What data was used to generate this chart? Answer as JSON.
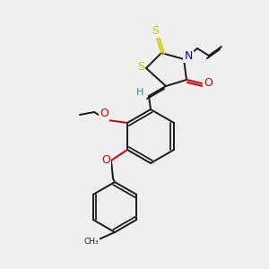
{
  "bg_color": "#efefef",
  "bond_color": "#1a1a1a",
  "bond_width": 1.4,
  "S_color": "#cccc00",
  "N_color": "#0000cc",
  "O_color": "#cc0000",
  "H_color": "#2e8b8b",
  "figsize": [
    3.0,
    3.0
  ],
  "dpi": 100,
  "xlim": [
    0,
    300
  ],
  "ylim": [
    0,
    300
  ]
}
